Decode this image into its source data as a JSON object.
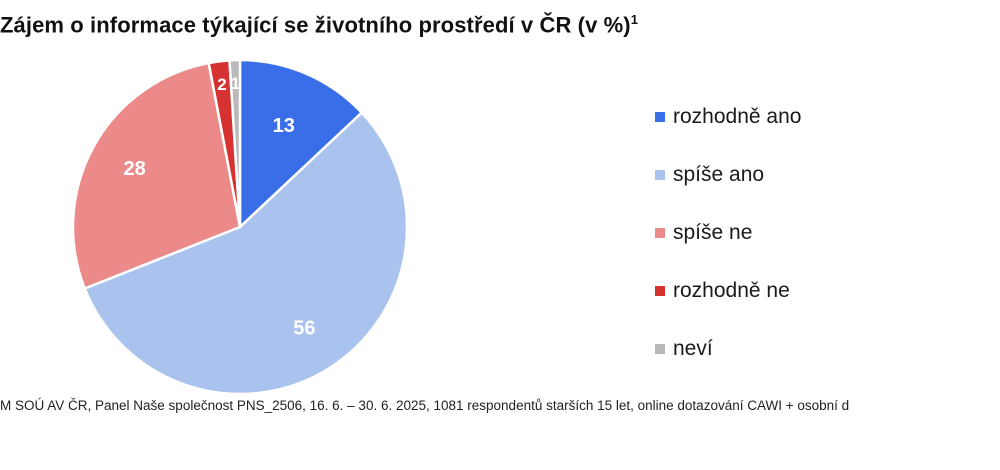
{
  "chart_data": {
    "type": "pie",
    "title": "Zájem o informace týkající se životního prostředí v ČR (v %)",
    "title_sup": "1",
    "categories": [
      "rozhodně ano",
      "spíše ano",
      "spíše ne",
      "rozhodně ne",
      "neví"
    ],
    "values": [
      13,
      56,
      28,
      2,
      1
    ],
    "colors": [
      "#3a6ee8",
      "#a9c2ee",
      "#ec8a8a",
      "#d63232",
      "#b9b9b9"
    ],
    "data_labels": [
      "13",
      "56",
      "28",
      "2",
      "1"
    ],
    "legend_position": "right"
  },
  "source_text": "M SOÚ AV ČR, Panel Naše společnost PNS_2506, 16. 6. – 30. 6. 2025, 1081 respondentů starších 15 let, online dotazování CAWI + osobní d"
}
